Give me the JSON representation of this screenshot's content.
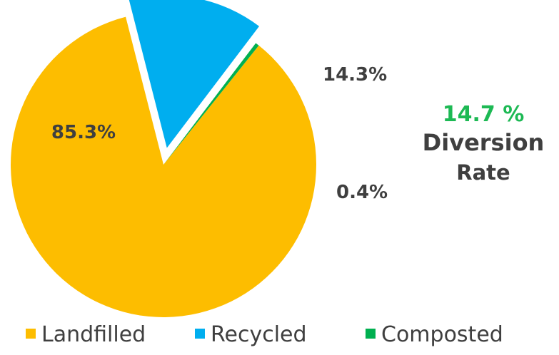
{
  "chart_data": {
    "type": "pie",
    "slices": [
      {
        "label": "Landfilled",
        "value": 85.3,
        "display": "85.3%",
        "color": "#FDBD00",
        "exploded": false
      },
      {
        "label": "Recycled",
        "value": 14.3,
        "display": "14.3%",
        "color": "#00AEEF",
        "exploded": true
      },
      {
        "label": "Composted",
        "value": 0.4,
        "display": "0.4%",
        "color": "#00B050",
        "exploded": false
      }
    ],
    "annotation": {
      "value": "14.7 %",
      "line1": "Diversion",
      "line2": "Rate",
      "value_color": "#1DB954",
      "text_color": "#3F3F3F"
    },
    "legend": {
      "placement": "bottom",
      "entries": [
        "Landfilled",
        "Recycled",
        "Composted"
      ]
    }
  }
}
